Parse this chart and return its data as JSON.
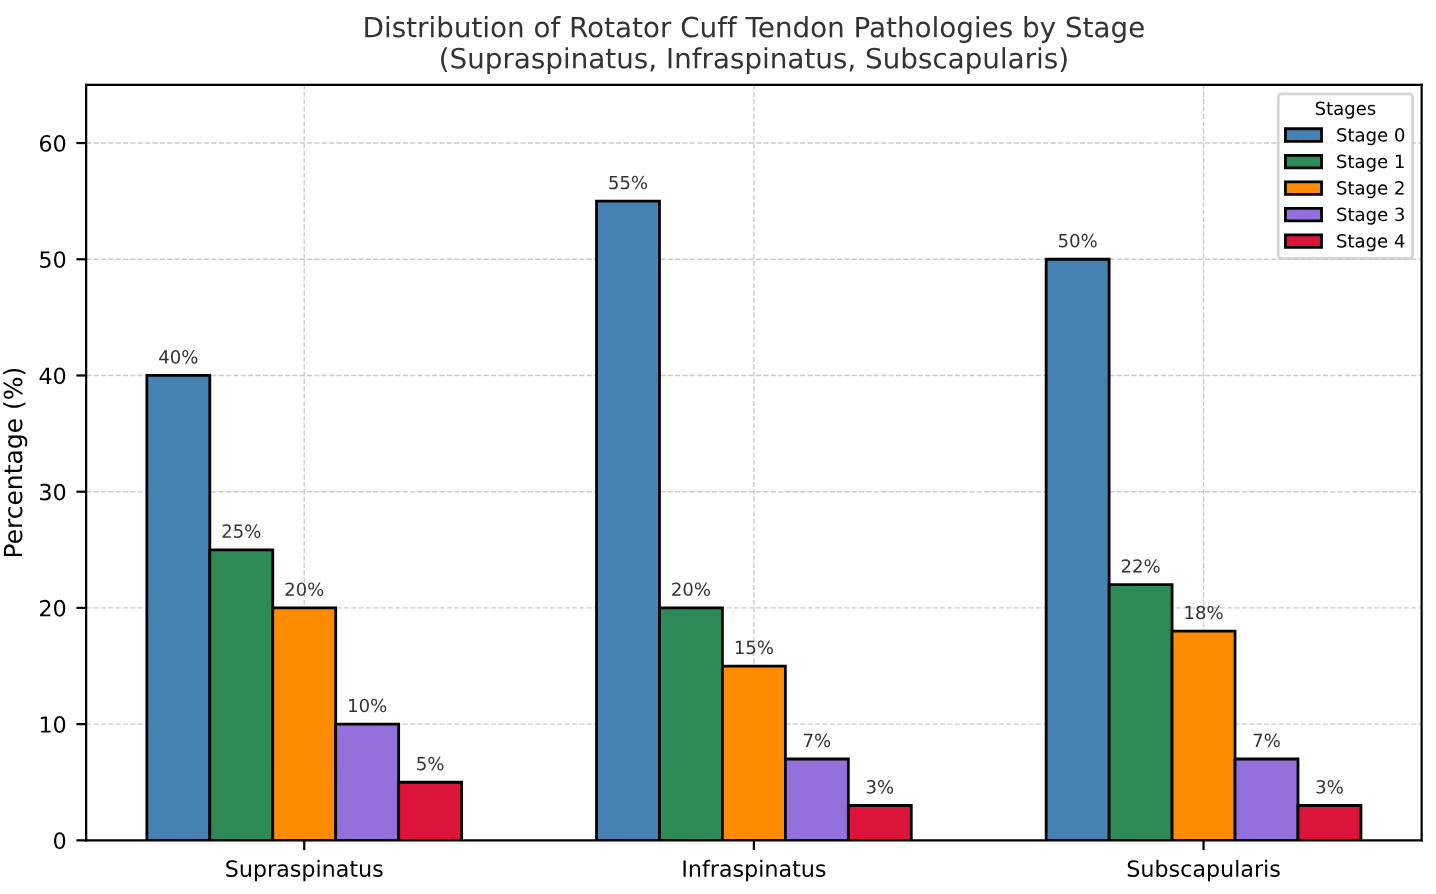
{
  "chart_data": {
    "type": "bar",
    "title": "Distribution of Rotator Cuff Tendon Pathologies by Stage\n(Supraspinatus, Infraspinatus, Subscapularis)",
    "ylabel": "Percentage (%)",
    "legend_title": "Stages",
    "categories": [
      "Supraspinatus",
      "Infraspinatus",
      "Subscapularis"
    ],
    "series": [
      {
        "name": "Stage 0",
        "color": "#4682b4",
        "values": [
          40,
          55,
          50
        ],
        "value_labels": [
          "40%",
          "55%",
          "50%"
        ]
      },
      {
        "name": "Stage 1",
        "color": "#2e8b57",
        "values": [
          25,
          20,
          22
        ],
        "value_labels": [
          "25%",
          "20%",
          "22%"
        ]
      },
      {
        "name": "Stage 2",
        "color": "#ff8c00",
        "values": [
          20,
          15,
          18
        ],
        "value_labels": [
          "20%",
          "15%",
          "18%"
        ]
      },
      {
        "name": "Stage 3",
        "color": "#9370db",
        "values": [
          10,
          7,
          7
        ],
        "value_labels": [
          "10%",
          "7%",
          "7%"
        ]
      },
      {
        "name": "Stage 4",
        "color": "#dc143c",
        "values": [
          5,
          3,
          3
        ],
        "value_labels": [
          "5%",
          "3%",
          "3%"
        ]
      }
    ],
    "ylim": [
      0,
      65
    ],
    "yticks": [
      0,
      10,
      20,
      30,
      40,
      50,
      60
    ],
    "grid": true,
    "legend": "top right"
  }
}
